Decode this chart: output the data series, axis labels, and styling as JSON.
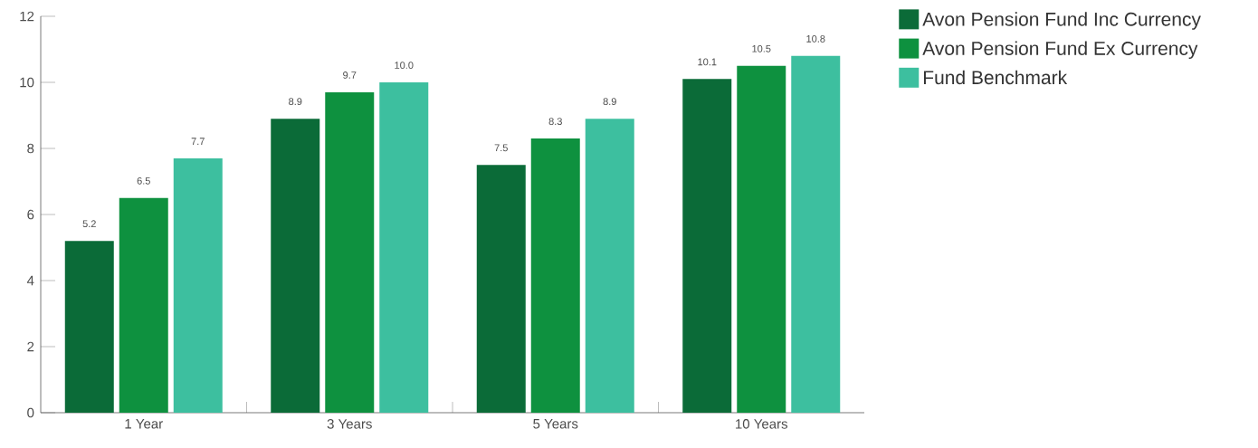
{
  "chart_data": {
    "type": "bar",
    "categories": [
      "1 Year",
      "3 Years",
      "5 Years",
      "10 Years"
    ],
    "series": [
      {
        "name": "Avon Pension Fund Inc Currency",
        "color": "#0b6b38",
        "values": [
          5.2,
          8.9,
          7.5,
          10.1
        ],
        "value_labels": [
          "5.2",
          "8.9",
          "7.5",
          "10.1"
        ]
      },
      {
        "name": "Avon Pension Fund Ex Currency",
        "color": "#0e913f",
        "values": [
          6.5,
          9.7,
          8.3,
          10.5
        ],
        "value_labels": [
          "6.5",
          "9.7",
          "8.3",
          "10.5"
        ]
      },
      {
        "name": "Fund Benchmark",
        "color": "#3dbf9f",
        "values": [
          7.7,
          10.0,
          8.9,
          10.8
        ],
        "value_labels": [
          "7.7",
          "10.0",
          "8.9",
          "10.8"
        ]
      }
    ],
    "ylim": [
      0,
      12
    ],
    "yticks": [
      0,
      2,
      4,
      6,
      8,
      10,
      12
    ],
    "grid": false,
    "legend": "top right"
  }
}
